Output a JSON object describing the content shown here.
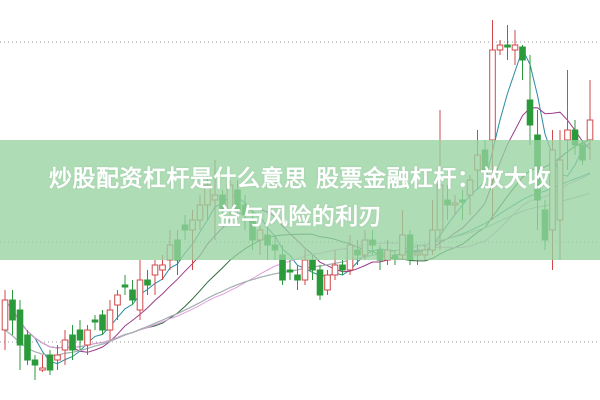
{
  "title_line1": "炒股配资杠杆是什么意思 股票金融杠杆：放大收",
  "title_line2": "益与风险的利刃",
  "colors": {
    "up": "#d04a4a",
    "down": "#2a9a3a",
    "band": "#96d2a0",
    "ma5": "#2a8aa0",
    "ma10": "#9a3a8a",
    "ma20": "#2f6a3a",
    "ma30": "#e0a0e0",
    "ma60": "#3a9a9a",
    "ma120": "#b0b0b0"
  },
  "chart_data": {
    "type": "candlestick",
    "title": "",
    "xlabel": "",
    "ylabel": "",
    "grid": "dotted horizontal lines",
    "legend": "none",
    "moving_averages": [
      "MA5",
      "MA10",
      "MA20",
      "MA30",
      "MA60",
      "MA120"
    ],
    "ohlc": [
      [
        7.0,
        11.0,
        5.0,
        10.0
      ],
      [
        10.0,
        11.0,
        6.5,
        8.0
      ],
      [
        9.0,
        10.0,
        3.0,
        5.5
      ],
      [
        6.5,
        7.0,
        3.5,
        4.0
      ],
      [
        4.0,
        4.5,
        2.0,
        3.5
      ],
      [
        3.0,
        4.5,
        2.8,
        3.2
      ],
      [
        4.5,
        5.0,
        2.5,
        3.0
      ],
      [
        4.0,
        5.5,
        3.0,
        4.5
      ],
      [
        5.0,
        7.0,
        3.5,
        6.0
      ],
      [
        6.5,
        7.5,
        4.0,
        5.0
      ],
      [
        7.0,
        8.0,
        5.0,
        6.0
      ],
      [
        5.5,
        7.5,
        4.5,
        7.0
      ],
      [
        8.0,
        8.5,
        7.0,
        7.8
      ],
      [
        8.5,
        9.0,
        6.5,
        7.0
      ],
      [
        7.0,
        10.0,
        6.0,
        9.0
      ],
      [
        9.5,
        11.0,
        8.0,
        10.5
      ],
      [
        11.5,
        12.5,
        10.5,
        11.3
      ],
      [
        11.0,
        12.0,
        9.5,
        10.0
      ],
      [
        9.0,
        14.0,
        8.0,
        12.0
      ],
      [
        12.0,
        13.0,
        10.5,
        11.5
      ],
      [
        12.5,
        14.0,
        10.5,
        13.5
      ],
      [
        13.0,
        14.5,
        12.0,
        13.5
      ],
      [
        14.0,
        17.0,
        13.0,
        15.5
      ],
      [
        16.0,
        17.0,
        12.5,
        14.0
      ],
      [
        17.5,
        18.5,
        16.0,
        17.0
      ],
      [
        17.0,
        19.0,
        13.0,
        18.0
      ],
      [
        18.0,
        20.5,
        17.0,
        19.5
      ],
      [
        19.5,
        22.5,
        18.0,
        21.5
      ],
      [
        20.0,
        24.0,
        16.0,
        20.5
      ],
      [
        20.5,
        21.0,
        17.5,
        19.0
      ],
      [
        19.0,
        22.0,
        18.5,
        21.5
      ],
      [
        21.0,
        22.0,
        18.0,
        19.0
      ],
      [
        19.5,
        20.5,
        17.0,
        18.5
      ],
      [
        18.0,
        19.0,
        15.0,
        16.0
      ],
      [
        16.0,
        17.5,
        14.5,
        17.0
      ],
      [
        16.5,
        17.5,
        14.0,
        15.5
      ],
      [
        15.5,
        16.5,
        14.0,
        15.0
      ],
      [
        14.5,
        15.5,
        11.5,
        12.0
      ],
      [
        13.0,
        14.0,
        12.0,
        12.8
      ],
      [
        12.5,
        13.5,
        11.0,
        12.0
      ],
      [
        12.0,
        15.0,
        11.5,
        14.0
      ],
      [
        14.0,
        14.5,
        12.0,
        13.0
      ],
      [
        13.0,
        13.5,
        10.0,
        10.5
      ],
      [
        11.0,
        13.0,
        10.5,
        12.5
      ],
      [
        12.5,
        15.0,
        12.0,
        13.5
      ],
      [
        13.5,
        14.0,
        12.5,
        13.0
      ],
      [
        13.0,
        16.5,
        12.5,
        15.5
      ],
      [
        15.0,
        16.0,
        13.5,
        14.5
      ],
      [
        14.5,
        17.0,
        14.0,
        16.0
      ],
      [
        16.0,
        17.0,
        14.5,
        15.5
      ],
      [
        15.0,
        15.5,
        13.0,
        14.0
      ],
      [
        14.0,
        16.0,
        13.5,
        15.0
      ],
      [
        14.5,
        15.0,
        13.5,
        14.2
      ],
      [
        14.5,
        19.0,
        14.0,
        16.5
      ],
      [
        16.5,
        17.0,
        13.5,
        14.0
      ],
      [
        14.5,
        15.5,
        13.5,
        14.7
      ],
      [
        14.5,
        15.5,
        14.0,
        15.0
      ],
      [
        15.0,
        20.0,
        14.5,
        17.0
      ],
      [
        17.0,
        29.0,
        15.0,
        21.5
      ],
      [
        20.0,
        21.5,
        18.0,
        19.5
      ],
      [
        19.5,
        20.5,
        18.5,
        19.7
      ],
      [
        20.0,
        21.0,
        18.0,
        19.8
      ],
      [
        20.5,
        22.5,
        18.5,
        22.0
      ],
      [
        23.0,
        27.0,
        21.0,
        24.5
      ],
      [
        25.0,
        26.0,
        21.5,
        23.0
      ],
      [
        26.0,
        38.0,
        18.0,
        35.0
      ],
      [
        35.0,
        36.0,
        34.5,
        35.5
      ],
      [
        35.5,
        37.5,
        34.0,
        35.3
      ],
      [
        35.0,
        37.0,
        33.5,
        35.5
      ],
      [
        35.3,
        35.5,
        32.0,
        34.0
      ],
      [
        30.0,
        34.5,
        25.5,
        27.5
      ],
      [
        26.5,
        29.0,
        17.0,
        20.0
      ],
      [
        19.0,
        20.0,
        15.0,
        16.0
      ],
      [
        17.0,
        27.0,
        13.0,
        25.0
      ],
      [
        18.0,
        27.0,
        14.0,
        24.0
      ],
      [
        26.0,
        33.0,
        23.0,
        27.0
      ],
      [
        27.0,
        28.0,
        24.5,
        25.5
      ],
      [
        25.5,
        26.0,
        23.5,
        24.0
      ],
      [
        26.0,
        32.0,
        24.0,
        28.0
      ]
    ]
  }
}
